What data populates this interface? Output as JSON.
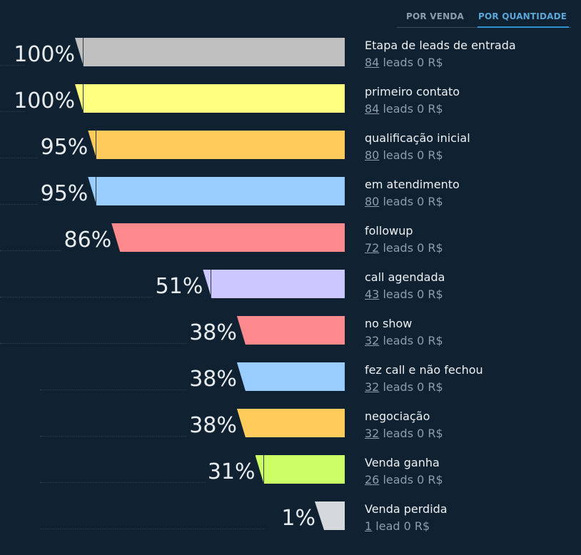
{
  "tabs": {
    "by_sale": "POR VENDA",
    "by_quantity": "POR QUANTIDADE",
    "active": "by_quantity"
  },
  "chart_data": {
    "type": "bar",
    "orientation": "horizontal-funnel",
    "x_max_percent": 100,
    "stages": [
      {
        "name": "Etapa de leads de entrada",
        "percent": 100,
        "percent_label": "100%",
        "leads": 84,
        "unit": "leads",
        "value_label": "0 R$",
        "color": "#c0c0c0"
      },
      {
        "name": "primeiro contato",
        "percent": 100,
        "percent_label": "100%",
        "leads": 84,
        "unit": "leads",
        "value_label": "0 R$",
        "color": "#ffff80"
      },
      {
        "name": "qualificação inicial",
        "percent": 95,
        "percent_label": "95%",
        "leads": 80,
        "unit": "leads",
        "value_label": "0 R$",
        "color": "#ffcc5b"
      },
      {
        "name": "em atendimento",
        "percent": 95,
        "percent_label": "95%",
        "leads": 80,
        "unit": "leads",
        "value_label": "0 R$",
        "color": "#99ccff"
      },
      {
        "name": "followup",
        "percent": 86,
        "percent_label": "86%",
        "leads": 72,
        "unit": "leads",
        "value_label": "0 R$",
        "color": "#ff8a8e"
      },
      {
        "name": "call agendada",
        "percent": 51,
        "percent_label": "51%",
        "leads": 43,
        "unit": "leads",
        "value_label": "0 R$",
        "color": "#ccc8ff"
      },
      {
        "name": "no show",
        "percent": 38,
        "percent_label": "38%",
        "leads": 32,
        "unit": "leads",
        "value_label": "0 R$",
        "color": "#ff8a8e"
      },
      {
        "name": "fez call e não fechou",
        "percent": 38,
        "percent_label": "38%",
        "leads": 32,
        "unit": "leads",
        "value_label": "0 R$",
        "color": "#99ccff"
      },
      {
        "name": "negociação",
        "percent": 38,
        "percent_label": "38%",
        "leads": 32,
        "unit": "leads",
        "value_label": "0 R$",
        "color": "#ffcc5b"
      },
      {
        "name": "Venda ganha",
        "percent": 31,
        "percent_label": "31%",
        "leads": 26,
        "unit": "leads",
        "value_label": "0 R$",
        "color": "#ccff66"
      },
      {
        "name": "Venda perdida",
        "percent": 1,
        "percent_label": "1%",
        "leads": 1,
        "unit": "lead",
        "value_label": "0 R$",
        "color": "#d6d9dc"
      }
    ]
  }
}
